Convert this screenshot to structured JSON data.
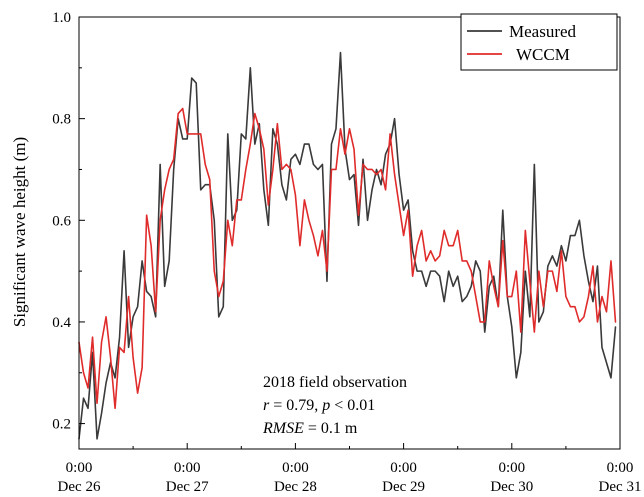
{
  "chart_data": {
    "type": "line",
    "title": "",
    "ylabel": "Significant wave height (m)",
    "xlabel": "",
    "ylim": [
      0.15,
      1.0
    ],
    "yticks": [
      0.2,
      0.4,
      0.6,
      0.8,
      1.0
    ],
    "ytick_labels": [
      "0.2",
      "0.4",
      "0.6",
      "0.8",
      "1.0"
    ],
    "xlim": [
      0,
      120
    ],
    "xticks": [
      {
        "hours": 0,
        "time": "0:00",
        "date": "Dec 26"
      },
      {
        "hours": 24,
        "time": "0:00",
        "date": "Dec 27"
      },
      {
        "hours": 48,
        "time": "0:00",
        "date": "Dec 28"
      },
      {
        "hours": 72,
        "time": "0:00",
        "date": "Dec 29"
      },
      {
        "hours": 96,
        "time": "0:00",
        "date": "Dec 30"
      },
      {
        "hours": 120,
        "time": "0:00",
        "date": "Dec 31"
      }
    ],
    "legend_position": "top-right",
    "annotation": {
      "line1": "2018 field observation",
      "line2": {
        "r_sym": "r",
        "r_text": " = 0.79, ",
        "p_sym": "p",
        "p_text": " < 0.01"
      },
      "line3": {
        "rmse_sym": "RMSE",
        "rmse_text": " = 0.1 m"
      }
    },
    "series": [
      {
        "name": "Measured",
        "color": "#3a3a3a",
        "points": [
          [
            0,
            0.17
          ],
          [
            1,
            0.25
          ],
          [
            2,
            0.23
          ],
          [
            3,
            0.34
          ],
          [
            4,
            0.17
          ],
          [
            5,
            0.22
          ],
          [
            6,
            0.28
          ],
          [
            7,
            0.32
          ],
          [
            8,
            0.29
          ],
          [
            9,
            0.37
          ],
          [
            10,
            0.54
          ],
          [
            11,
            0.35
          ],
          [
            12,
            0.41
          ],
          [
            13,
            0.43
          ],
          [
            14,
            0.52
          ],
          [
            15,
            0.46
          ],
          [
            16,
            0.45
          ],
          [
            17,
            0.41
          ],
          [
            18,
            0.71
          ],
          [
            19,
            0.47
          ],
          [
            20,
            0.52
          ],
          [
            21,
            0.7
          ],
          [
            22,
            0.8
          ],
          [
            23,
            0.76
          ],
          [
            24,
            0.76
          ],
          [
            25,
            0.88
          ],
          [
            26,
            0.87
          ],
          [
            27,
            0.66
          ],
          [
            28,
            0.67
          ],
          [
            29,
            0.67
          ],
          [
            30,
            0.6
          ],
          [
            31,
            0.41
          ],
          [
            32,
            0.43
          ],
          [
            33,
            0.77
          ],
          [
            34,
            0.6
          ],
          [
            35,
            0.62
          ],
          [
            36,
            0.77
          ],
          [
            37,
            0.76
          ],
          [
            38,
            0.9
          ],
          [
            39,
            0.75
          ],
          [
            40,
            0.79
          ],
          [
            41,
            0.66
          ],
          [
            42,
            0.59
          ],
          [
            43,
            0.78
          ],
          [
            44,
            0.75
          ],
          [
            45,
            0.67
          ],
          [
            46,
            0.64
          ],
          [
            47,
            0.72
          ],
          [
            48,
            0.73
          ],
          [
            49,
            0.71
          ],
          [
            50,
            0.75
          ],
          [
            51,
            0.75
          ],
          [
            52,
            0.71
          ],
          [
            53,
            0.7
          ],
          [
            54,
            0.71
          ],
          [
            55,
            0.48
          ],
          [
            56,
            0.75
          ],
          [
            57,
            0.78
          ],
          [
            58,
            0.93
          ],
          [
            59,
            0.74
          ],
          [
            60,
            0.68
          ],
          [
            61,
            0.69
          ],
          [
            62,
            0.59
          ],
          [
            63,
            0.72
          ],
          [
            64,
            0.6
          ],
          [
            65,
            0.66
          ],
          [
            66,
            0.7
          ],
          [
            67,
            0.67
          ],
          [
            68,
            0.73
          ],
          [
            69,
            0.75
          ],
          [
            70,
            0.8
          ],
          [
            71,
            0.69
          ],
          [
            72,
            0.62
          ],
          [
            73,
            0.64
          ],
          [
            74,
            0.54
          ],
          [
            75,
            0.5
          ],
          [
            76,
            0.5
          ],
          [
            77,
            0.47
          ],
          [
            78,
            0.5
          ],
          [
            79,
            0.5
          ],
          [
            80,
            0.49
          ],
          [
            81,
            0.44
          ],
          [
            82,
            0.5
          ],
          [
            83,
            0.47
          ],
          [
            84,
            0.49
          ],
          [
            85,
            0.44
          ],
          [
            86,
            0.45
          ],
          [
            87,
            0.47
          ],
          [
            88,
            0.52
          ],
          [
            89,
            0.5
          ],
          [
            90,
            0.38
          ],
          [
            91,
            0.47
          ],
          [
            92,
            0.49
          ],
          [
            93,
            0.43
          ],
          [
            94,
            0.62
          ],
          [
            95,
            0.45
          ],
          [
            96,
            0.39
          ],
          [
            97,
            0.29
          ],
          [
            98,
            0.34
          ],
          [
            99,
            0.5
          ],
          [
            100,
            0.41
          ],
          [
            101,
            0.71
          ],
          [
            102,
            0.4
          ],
          [
            103,
            0.42
          ],
          [
            104,
            0.51
          ],
          [
            105,
            0.53
          ],
          [
            106,
            0.51
          ],
          [
            107,
            0.55
          ],
          [
            108,
            0.52
          ],
          [
            109,
            0.57
          ],
          [
            110,
            0.57
          ],
          [
            111,
            0.6
          ],
          [
            112,
            0.53
          ],
          [
            113,
            0.48
          ],
          [
            114,
            0.44
          ],
          [
            115,
            0.51
          ],
          [
            116,
            0.35
          ],
          [
            117,
            0.32
          ],
          [
            118,
            0.29
          ],
          [
            119,
            0.39
          ]
        ]
      },
      {
        "name": "WCCM",
        "color": "#e02b2b",
        "points": [
          [
            0,
            0.36
          ],
          [
            1,
            0.3
          ],
          [
            2,
            0.27
          ],
          [
            3,
            0.37
          ],
          [
            4,
            0.24
          ],
          [
            5,
            0.36
          ],
          [
            6,
            0.41
          ],
          [
            7,
            0.33
          ],
          [
            8,
            0.23
          ],
          [
            9,
            0.35
          ],
          [
            10,
            0.34
          ],
          [
            11,
            0.45
          ],
          [
            12,
            0.33
          ],
          [
            13,
            0.26
          ],
          [
            14,
            0.31
          ],
          [
            15,
            0.61
          ],
          [
            16,
            0.55
          ],
          [
            17,
            0.42
          ],
          [
            18,
            0.6
          ],
          [
            19,
            0.66
          ],
          [
            20,
            0.7
          ],
          [
            21,
            0.72
          ],
          [
            22,
            0.81
          ],
          [
            23,
            0.82
          ],
          [
            24,
            0.77
          ],
          [
            25,
            0.77
          ],
          [
            26,
            0.77
          ],
          [
            27,
            0.77
          ],
          [
            28,
            0.71
          ],
          [
            29,
            0.68
          ],
          [
            30,
            0.5
          ],
          [
            31,
            0.45
          ],
          [
            32,
            0.48
          ],
          [
            33,
            0.6
          ],
          [
            34,
            0.55
          ],
          [
            35,
            0.64
          ],
          [
            36,
            0.64
          ],
          [
            37,
            0.7
          ],
          [
            38,
            0.75
          ],
          [
            39,
            0.81
          ],
          [
            40,
            0.78
          ],
          [
            41,
            0.74
          ],
          [
            42,
            0.63
          ],
          [
            43,
            0.7
          ],
          [
            44,
            0.79
          ],
          [
            45,
            0.7
          ],
          [
            46,
            0.71
          ],
          [
            47,
            0.7
          ],
          [
            48,
            0.65
          ],
          [
            49,
            0.55
          ],
          [
            50,
            0.64
          ],
          [
            51,
            0.6
          ],
          [
            52,
            0.57
          ],
          [
            53,
            0.53
          ],
          [
            54,
            0.58
          ],
          [
            55,
            0.5
          ],
          [
            56,
            0.7
          ],
          [
            57,
            0.7
          ],
          [
            58,
            0.78
          ],
          [
            59,
            0.73
          ],
          [
            60,
            0.78
          ],
          [
            61,
            0.74
          ],
          [
            62,
            0.61
          ],
          [
            63,
            0.71
          ],
          [
            64,
            0.7
          ],
          [
            65,
            0.7
          ],
          [
            66,
            0.69
          ],
          [
            67,
            0.7
          ],
          [
            68,
            0.66
          ],
          [
            69,
            0.77
          ],
          [
            70,
            0.69
          ],
          [
            71,
            0.63
          ],
          [
            72,
            0.57
          ],
          [
            73,
            0.62
          ],
          [
            74,
            0.49
          ],
          [
            75,
            0.55
          ],
          [
            76,
            0.58
          ],
          [
            77,
            0.52
          ],
          [
            78,
            0.54
          ],
          [
            79,
            0.52
          ],
          [
            80,
            0.53
          ],
          [
            81,
            0.58
          ],
          [
            82,
            0.55
          ],
          [
            83,
            0.55
          ],
          [
            84,
            0.58
          ],
          [
            85,
            0.52
          ],
          [
            86,
            0.52
          ],
          [
            87,
            0.5
          ],
          [
            88,
            0.45
          ],
          [
            89,
            0.4
          ],
          [
            90,
            0.4
          ],
          [
            91,
            0.52
          ],
          [
            92,
            0.47
          ],
          [
            93,
            0.43
          ],
          [
            94,
            0.56
          ],
          [
            95,
            0.45
          ],
          [
            96,
            0.45
          ],
          [
            97,
            0.5
          ],
          [
            98,
            0.38
          ],
          [
            99,
            0.58
          ],
          [
            100,
            0.48
          ],
          [
            101,
            0.38
          ],
          [
            102,
            0.5
          ],
          [
            103,
            0.43
          ],
          [
            104,
            0.5
          ],
          [
            105,
            0.5
          ],
          [
            106,
            0.46
          ],
          [
            107,
            0.54
          ],
          [
            108,
            0.45
          ],
          [
            109,
            0.43
          ],
          [
            110,
            0.43
          ],
          [
            111,
            0.4
          ],
          [
            112,
            0.41
          ],
          [
            113,
            0.45
          ],
          [
            114,
            0.51
          ],
          [
            115,
            0.4
          ],
          [
            116,
            0.45
          ],
          [
            117,
            0.42
          ],
          [
            118,
            0.52
          ],
          [
            119,
            0.4
          ]
        ]
      }
    ]
  }
}
